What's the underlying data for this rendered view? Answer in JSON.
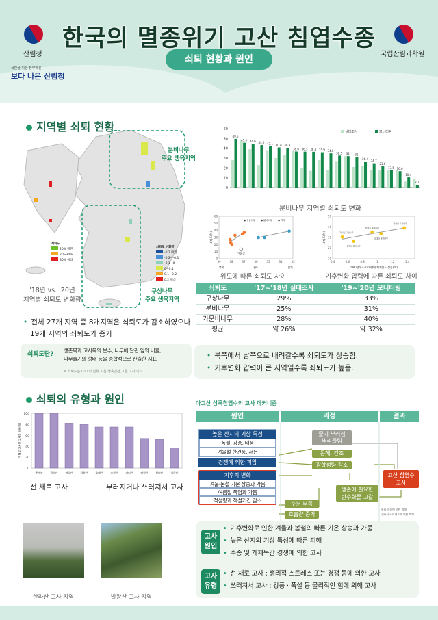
{
  "header": {
    "title": "한국의 멸종위기 고산 침엽수종",
    "subtitle": "쇠퇴 현황과 원인",
    "left_org": "산림청",
    "right_org": "국립산림과학원",
    "slogan_small": "국민을 위한 정부혁신",
    "slogan": "보다 나은 산림청"
  },
  "section1": {
    "title": "지역별 쇠퇴 현황",
    "map_label_fir": "분비나무\n주요 생육지역",
    "map_label_fir_1": "분비나무",
    "map_label_fir_2": "주요 생육지역",
    "map_label_korean_fir_1": "구상나무",
    "map_label_korean_fir_2": "주요 생육지역",
    "map_caption_1": "'18년 vs. '20년",
    "map_caption_2": "지역별 쇠퇴도 변화량",
    "legend1_title": "쇠퇴도",
    "legend1": [
      "20% 미만",
      "20~30%",
      "30% 이상"
    ],
    "legend1_colors": [
      "#6cc02a",
      "#f5a623",
      "#e02020"
    ],
    "legend2_title": "쇠퇴도 변화량",
    "legend2": [
      "-0.2 미만",
      "-0.2~-0.1",
      "-0.1~0",
      "0~0.1",
      "0.1~0.2",
      "0.2 이상"
    ],
    "legend2_colors": [
      "#1a4fa0",
      "#4a90d9",
      "#8fd1b8",
      "#d9e84a",
      "#f5a623",
      "#e02020"
    ],
    "bullet": "전체 27개 지역 중 8개지역은 쇠퇴도가 감소하였으나",
    "bullet_2": "19개 지역의 쇠퇴도가 증가",
    "definition_label": "쇠퇴도란?",
    "definition_1": "생존목과 고사목의 본수, 나무에 달린 잎의 비율,",
    "definition_2": "나무줄기의 형태 등을 종합적으로 산출한 지표",
    "definition_note": "※ 쇠퇴도는 0~1의 범위, 0은 생육건전, 1은 고사 의미",
    "table": {
      "headers": [
        "쇠퇴도",
        "'17~'18년 실태조사",
        "'19~'20년 모니터링"
      ],
      "rows": [
        [
          "구상나무",
          "29%",
          "33%"
        ],
        [
          "분비나무",
          "25%",
          "31%"
        ],
        [
          "가문비나무",
          "28%",
          "40%"
        ],
        [
          "평균",
          "약 26%",
          "약 32%"
        ]
      ]
    },
    "findings": [
      "북쪽에서 남쪽으로 내려갈수록 쇠퇴도가 상승함.",
      "기후변화 압력이 큰 지역일수록 쇠퇴도가 높음."
    ],
    "scatter1_caption": "위도에 따른 쇠퇴도 차이",
    "scatter2_caption": "기후변화 압력에 따른 쇠퇴도 차이"
  },
  "chart_data": [
    {
      "type": "bar",
      "title": "분비나무 지역별 쇠퇴도 변화",
      "ylim": [
        0,
        60
      ],
      "yticks": [
        0,
        10,
        20,
        30,
        40,
        50,
        60
      ],
      "series": [
        {
          "name": "실태조사",
          "color": "#bfe3c9",
          "values": [
            28,
            48,
            39,
            23,
            38,
            30,
            33,
            37,
            20,
            17,
            28,
            18,
            27,
            32,
            21,
            22,
            18,
            18,
            18,
            18,
            6,
            9
          ]
        },
        {
          "name": "모니터링",
          "color": "#12884a",
          "values": [
            49.6,
            45.6,
            44.6,
            43.2,
            42.1,
            40.8,
            40.3,
            36.6,
            36.5,
            36.4,
            35.9,
            34.8,
            32.5,
            32.0,
            31.0,
            26.4,
            24.7,
            21.6,
            17.5,
            16.6,
            10.4,
            2.7
          ]
        }
      ],
      "legend": "top-right"
    },
    {
      "type": "scatter",
      "xlabel": "위도",
      "x_left": "북쪽",
      "x_right": "남쪽",
      "ylabel": "쇠퇴도(%)",
      "xlim": [
        39,
        33
      ],
      "ylim": [
        0,
        60
      ],
      "xticks": [
        39,
        38,
        37,
        36,
        35,
        34,
        33
      ],
      "series": [
        {
          "name": "구상나무",
          "color": "#3a9ac8",
          "points": [
            [
              35.8,
              30
            ],
            [
              35.3,
              30
            ],
            [
              33.3,
              39
            ]
          ]
        },
        {
          "name": "분비나무",
          "color": "#f07a30",
          "points": [
            [
              38.1,
              27
            ],
            [
              38.05,
              23
            ],
            [
              37.95,
              20
            ],
            [
              37.7,
              33
            ],
            [
              37.1,
              35
            ],
            [
              36.95,
              37
            ]
          ]
        },
        {
          "name": "기타",
          "color": "#ffffff",
          "points": [
            [
              37.2,
              13
            ]
          ]
        }
      ],
      "annotation": "백운산",
      "legend": "top-right"
    },
    {
      "type": "scatter",
      "xlabel": "1980년대~2010년대 최저온도 상승(℃)",
      "ylabel": "쇠퇴도(%)",
      "xlim": [
        0.4,
        1.5
      ],
      "ylim": [
        10,
        50
      ],
      "xticks": [
        0.4,
        0.6,
        0.8,
        1.0,
        1.2,
        1.4
      ],
      "points": [
        {
          "x": 0.53,
          "y": 30.5,
          "label": "지리산 구상나무"
        },
        {
          "x": 0.68,
          "y": 26.5,
          "label": "설악산 분비나무"
        },
        {
          "x": 0.93,
          "y": 35,
          "label": "함백산 분비나무"
        },
        {
          "x": 1.05,
          "y": 33.5,
          "label": "오대산 분비나무"
        },
        {
          "x": 1.36,
          "y": 39,
          "label": "한라산 구상나무"
        }
      ],
      "color": "#f5c518"
    },
    {
      "type": "bar",
      "ylabel": "선 채로 고사한 고사목 비율(%)",
      "ylim": [
        0,
        100
      ],
      "yticks": [
        0,
        20,
        40,
        60,
        80,
        100
      ],
      "categories": [
        "두개봉",
        "함백산",
        "설악산",
        "덕유산",
        "오대산",
        "소백산",
        "지리산",
        "태백산",
        "한라산",
        "백운산"
      ],
      "values": [
        100,
        100,
        82,
        80,
        75,
        75,
        75,
        54,
        52,
        37
      ],
      "color": "#a895c8"
    }
  ],
  "section2": {
    "title": "쇠퇴의 유형과 원인",
    "axis_left": "선 채로 고사",
    "axis_right": "부러지거나 쓰러져서 고사",
    "mechanism_title": "아고산 상록침엽수의 고사 메커니즘",
    "cols": [
      "원인",
      "과정",
      "결과"
    ],
    "cause1": "높은 산지의 기상 특성",
    "cause1_a": "폭설, 강풍, 태풍",
    "cause1_b": "겨울철 한건풍, 저온",
    "cause2": "경쟁에 의한 피압",
    "cause3": "기후의 변화",
    "cause3_a": "겨울·봄철 기온 상승과 가뭄",
    "cause3_b": "여름철 폭염과 가뭄",
    "cause3_c": "적설량과 적설기간 감소",
    "proc1": "줄기 부러짐\n뿌리들림",
    "proc1_a": "줄기 부러짐",
    "proc1_b": "뿌리들림",
    "proc2": "동해, 건조",
    "proc3": "광합성량 감소",
    "proc4": "수분 부족",
    "proc5": "호흡량 증가",
    "proc6_a": "생존에 필요한",
    "proc6_b": "탄수화물 고갈",
    "result_a": "고산 침엽수",
    "result_b": "고사",
    "legend_a": "물리적 힘에 의한 피해",
    "legend_b": "생리적 스트레스에 의한 피해",
    "photo1": "한라산 고사 지역",
    "photo2": "발왕산 고사 지역",
    "cause_tag": [
      "고사",
      "원인"
    ],
    "causes": [
      "기후변화로 인한 겨울과 봄철의 빠른 기온 상승과 가뭄",
      "높은 산지의 기상 특성에 따른 피해",
      "수종 및 개체목간 경쟁에 의한 고사"
    ],
    "type_tag": [
      "고사",
      "유형"
    ],
    "types": [
      "선 채로 고사 : 생리적 스트레스 또는 경쟁 등에 의한 고사",
      "쓰러져서 고사 : 강풍 · 폭설 등 물리적인 힘에 의해 고사"
    ]
  }
}
